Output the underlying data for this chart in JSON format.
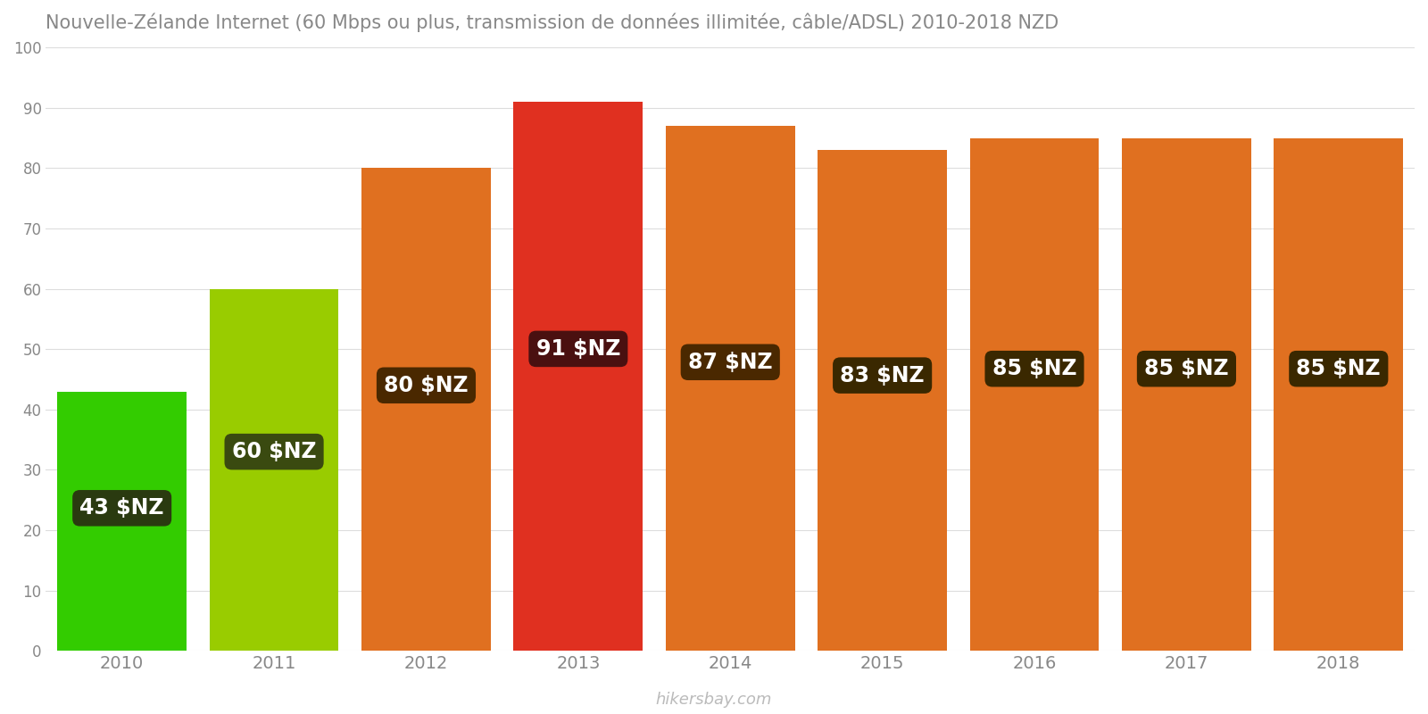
{
  "years": [
    2010,
    2011,
    2012,
    2013,
    2014,
    2015,
    2016,
    2017,
    2018
  ],
  "values": [
    43,
    60,
    80,
    91,
    87,
    83,
    85,
    85,
    85
  ],
  "bar_colors": [
    "#33cc00",
    "#99cc00",
    "#e07020",
    "#e03020",
    "#e07020",
    "#e07020",
    "#e07020",
    "#e07020",
    "#e07020"
  ],
  "label_bg_colors": [
    "#2a3a10",
    "#3a4a10",
    "#4a2800",
    "#4a1010",
    "#4a2800",
    "#3a2800",
    "#3a2800",
    "#3a2800",
    "#3a2800"
  ],
  "labels": [
    "43 $NZ",
    "60 $NZ",
    "80 $NZ",
    "91 $NZ",
    "87 $NZ",
    "83 $NZ",
    "85 $NZ",
    "85 $NZ",
    "85 $NZ"
  ],
  "title": "Nouvelle-Zélande Internet (60 Mbps ou plus, transmission de données illimitée, câble/ADSL) 2010-2018 NZD",
  "ylim": [
    0,
    100
  ],
  "yticks": [
    0,
    10,
    20,
    30,
    40,
    50,
    60,
    70,
    80,
    90,
    100
  ],
  "background_color": "#ffffff",
  "watermark": "hikersbay.com",
  "title_fontsize": 15,
  "bar_width": 0.85
}
